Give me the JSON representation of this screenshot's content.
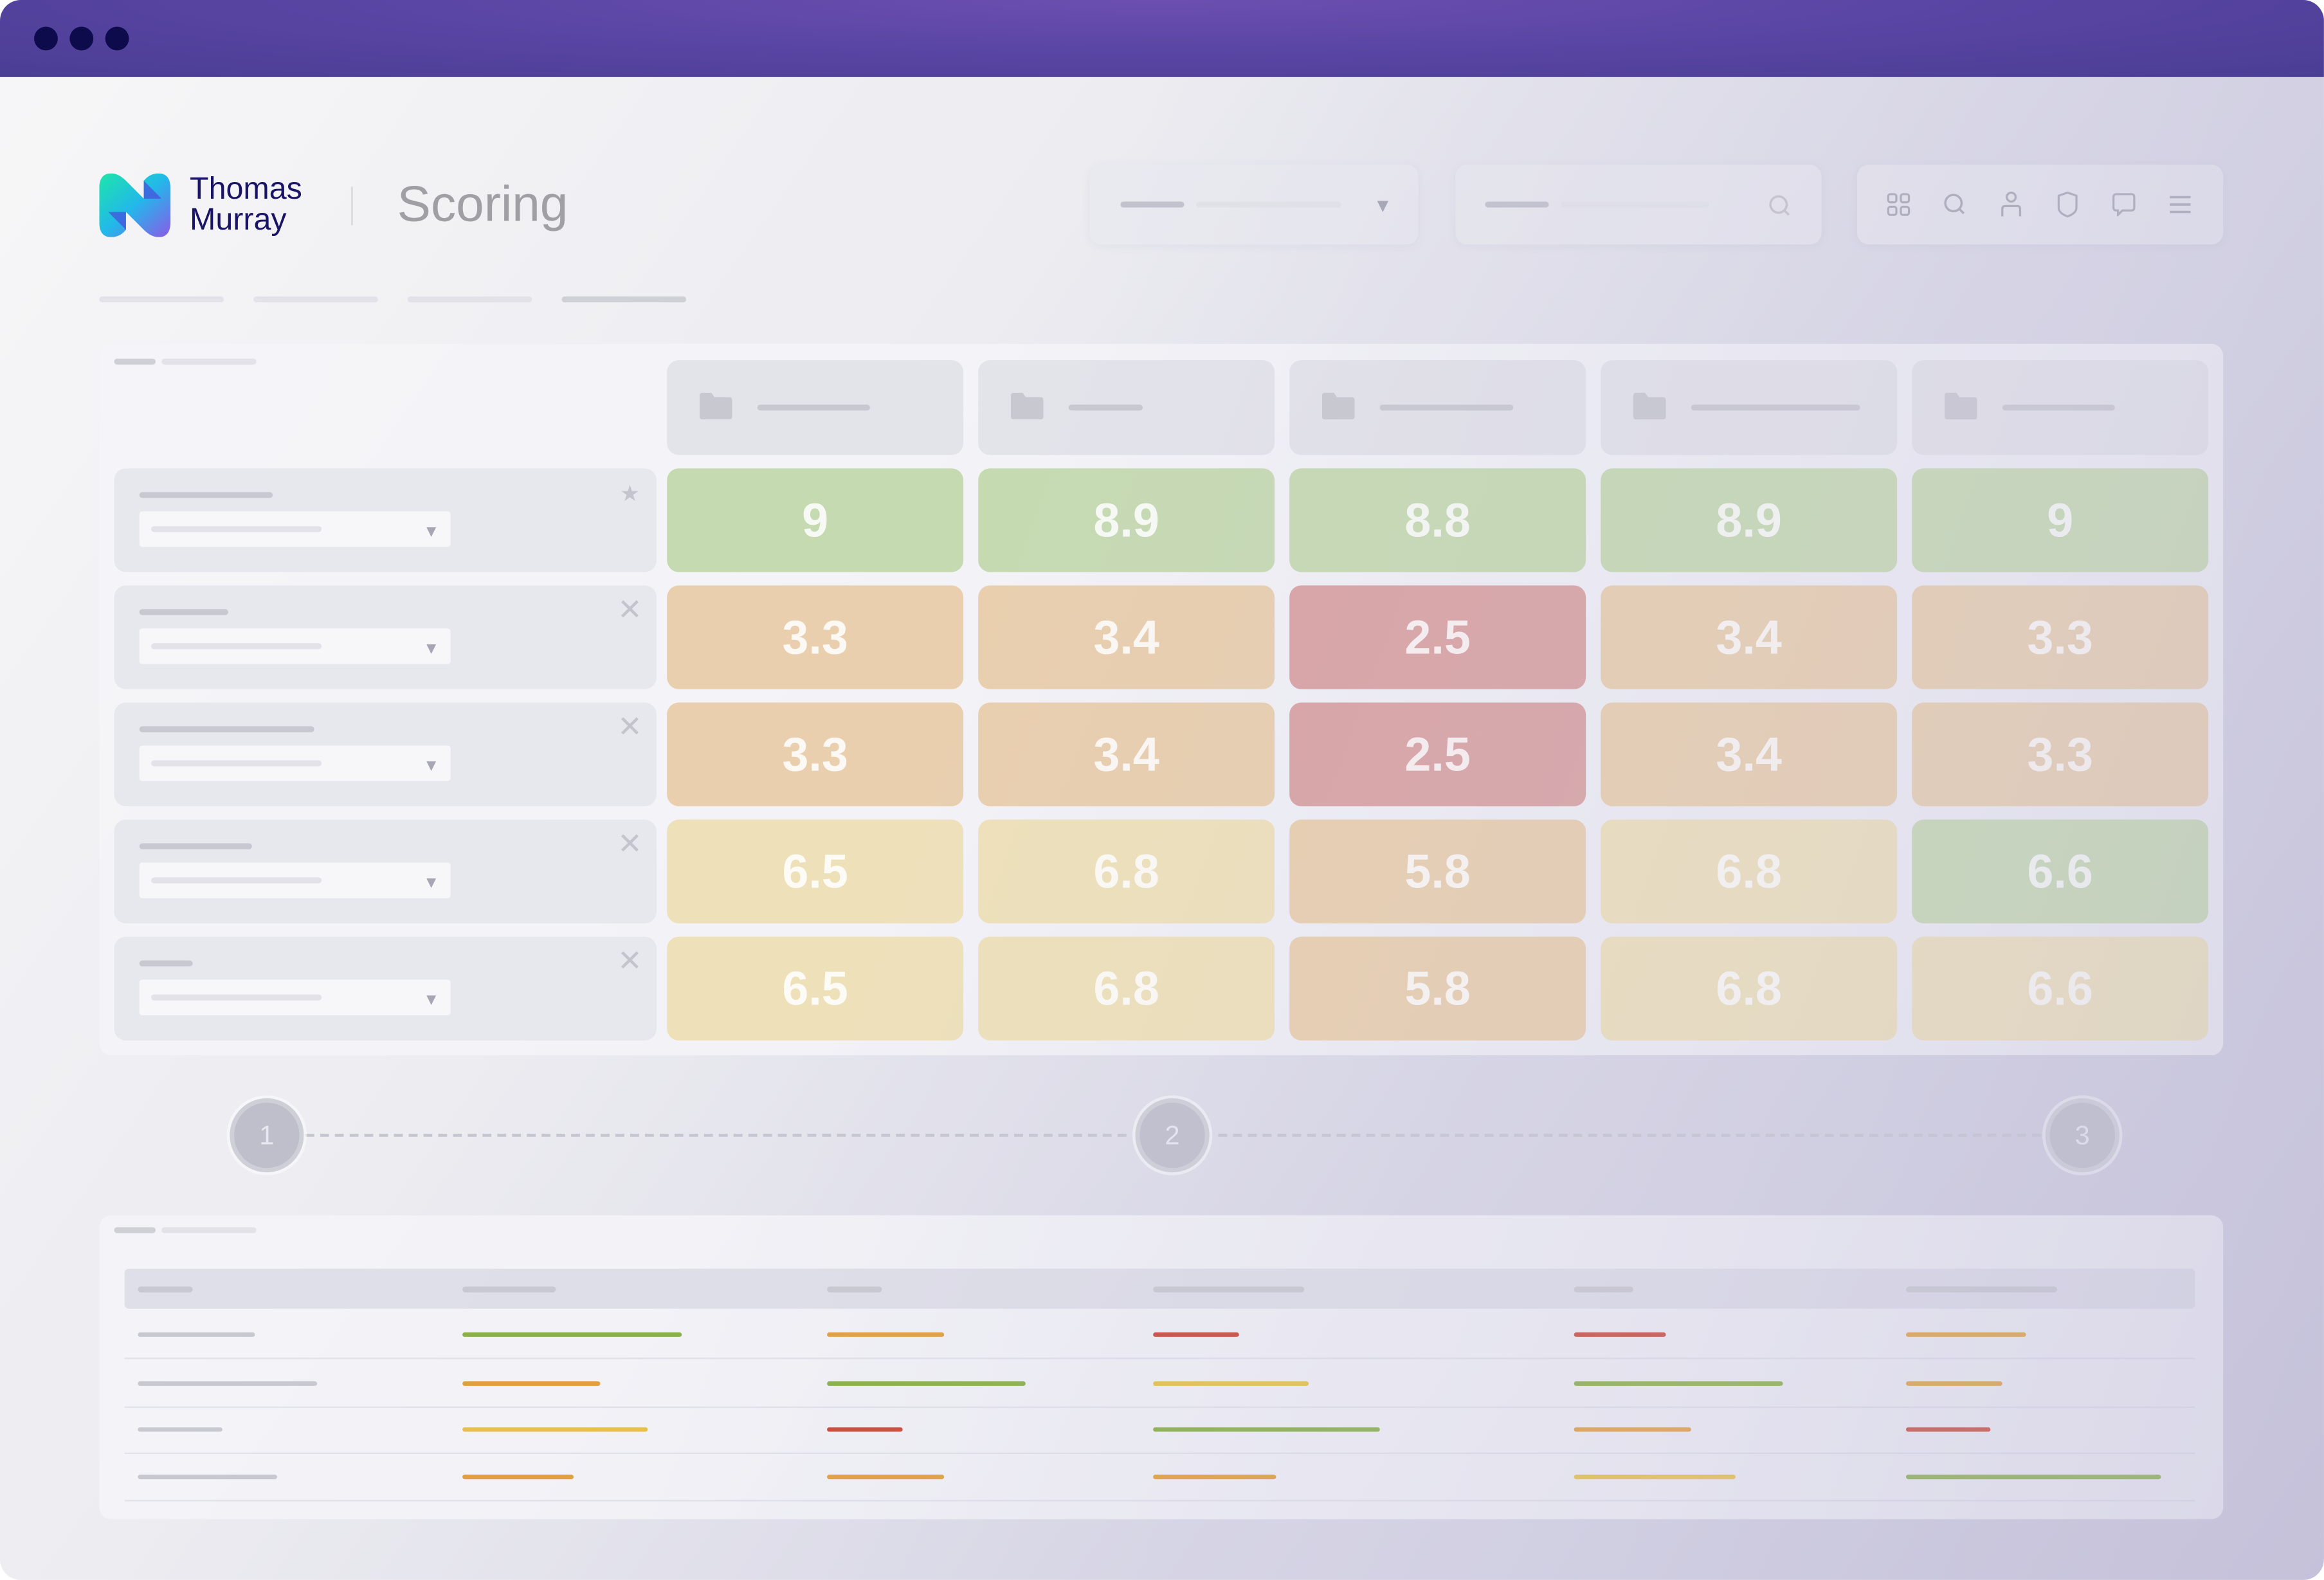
{
  "window": {
    "controls": [
      "close",
      "minimize",
      "maximize"
    ],
    "titlebar_color": "#5a46a4"
  },
  "header": {
    "brand_line1": "Thomas",
    "brand_line2": "Murray",
    "page_title": "Scoring",
    "toolbar_icons": [
      "grid-icon",
      "search-icon",
      "user-icon",
      "shield-icon",
      "chat-icon",
      "menu-icon"
    ]
  },
  "status_colors": {
    "green": "#8ab04a",
    "orange": "#e0a040",
    "red": "#c84a3a",
    "yellow": "#e6c14a"
  },
  "cell_colors": {
    "green": "#c6dab2",
    "orange": "#e9cfae",
    "red": "#d9a3a3",
    "yellow": "#eee1ba"
  },
  "matrix": {
    "columns": 5,
    "rows": [
      {
        "icon": "star-icon",
        "cells": [
          {
            "score": "9",
            "status": "green"
          },
          {
            "score": "8.9",
            "status": "green"
          },
          {
            "score": "8.8",
            "status": "green"
          },
          {
            "score": "8.9",
            "status": "green"
          },
          {
            "score": "9",
            "status": "green"
          }
        ]
      },
      {
        "icon": "close-icon",
        "cells": [
          {
            "score": "3.3",
            "status": "orange"
          },
          {
            "score": "3.4",
            "status": "orange"
          },
          {
            "score": "2.5",
            "status": "red"
          },
          {
            "score": "3.4",
            "status": "orange"
          },
          {
            "score": "3.3",
            "status": "orange"
          }
        ]
      },
      {
        "icon": "close-icon",
        "cells": [
          {
            "score": "3.3",
            "status": "orange"
          },
          {
            "score": "3.4",
            "status": "orange"
          },
          {
            "score": "2.5",
            "status": "red"
          },
          {
            "score": "3.4",
            "status": "orange"
          },
          {
            "score": "3.3",
            "status": "orange"
          }
        ]
      },
      {
        "icon": "close-icon",
        "cells": [
          {
            "score": "6.5",
            "status": "yellow"
          },
          {
            "score": "6.8",
            "status": "yellow"
          },
          {
            "score": "5.8",
            "status": "orange"
          },
          {
            "score": "6.8",
            "status": "yellow"
          },
          {
            "score": "6.6",
            "status": "green"
          }
        ]
      },
      {
        "icon": "close-icon",
        "cells": [
          {
            "score": "6.5",
            "status": "yellow"
          },
          {
            "score": "6.8",
            "status": "yellow"
          },
          {
            "score": "5.8",
            "status": "orange"
          },
          {
            "score": "6.8",
            "status": "yellow"
          },
          {
            "score": "6.6",
            "status": "yellow"
          }
        ]
      }
    ]
  },
  "stepper": {
    "steps": [
      "1",
      "2",
      "3"
    ]
  },
  "summary_table": {
    "rows": [
      [
        "green",
        "orange",
        "red",
        "red",
        "orange"
      ],
      [
        "orange",
        "green",
        "yellow",
        "green",
        "orange"
      ],
      [
        "yellow",
        "red",
        "green",
        "orange",
        "red"
      ],
      [
        "orange",
        "orange",
        "orange",
        "yellow",
        "green"
      ]
    ]
  }
}
